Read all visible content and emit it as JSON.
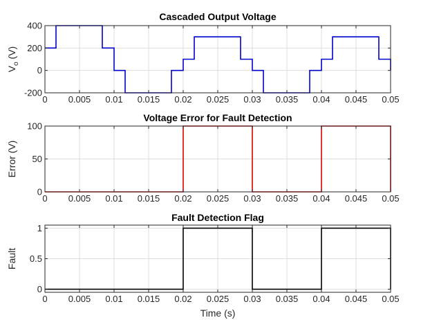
{
  "chart_data": [
    {
      "type": "line",
      "title": "Cascaded Output Voltage",
      "ylabel": "V_o (V)",
      "ylabel_main": "V",
      "ylabel_sub": "o",
      "ylabel_unit": " (V)",
      "xlabel": "",
      "xlim": [
        0,
        0.05
      ],
      "ylim": [
        -200,
        400
      ],
      "xticks": [
        "0",
        "0.005",
        "0.01",
        "0.015",
        "0.02",
        "0.025",
        "0.03",
        "0.035",
        "0.04",
        "0.045",
        "0.05"
      ],
      "yticks": [
        "-200",
        "0",
        "200",
        "400"
      ],
      "ytick_values": [
        -200,
        0,
        200,
        400
      ],
      "grid": true,
      "series": [
        {
          "color": "#0000cc",
          "x": [
            0,
            0.0016,
            0.0016,
            0.0083,
            0.0083,
            0.01,
            0.01,
            0.0116,
            0.0116,
            0.0183,
            0.0183,
            0.02,
            0.02,
            0.0216,
            0.0216,
            0.0283,
            0.0283,
            0.03,
            0.03,
            0.0316,
            0.0316,
            0.0383,
            0.0383,
            0.04,
            0.04,
            0.0416,
            0.0416,
            0.0483,
            0.0483,
            0.05,
            0.05
          ],
          "y": [
            200,
            200,
            400,
            400,
            200,
            200,
            0,
            0,
            -200,
            -200,
            0,
            0,
            100,
            100,
            300,
            300,
            100,
            100,
            0,
            0,
            -200,
            -200,
            0,
            0,
            100,
            100,
            300,
            300,
            100,
            100,
            0
          ]
        }
      ]
    },
    {
      "type": "line",
      "title": "Voltage Error for Fault Detection",
      "ylabel": "Error (V)",
      "xlabel": "",
      "xlim": [
        0,
        0.05
      ],
      "ylim": [
        0,
        100
      ],
      "xticks": [
        "0",
        "0.005",
        "0.01",
        "0.015",
        "0.02",
        "0.025",
        "0.03",
        "0.035",
        "0.04",
        "0.045",
        "0.05"
      ],
      "yticks": [
        "0",
        "50",
        "100"
      ],
      "ytick_values": [
        0,
        50,
        100
      ],
      "grid": true,
      "series": [
        {
          "color": "#dd0000",
          "x": [
            0,
            0.02,
            0.02,
            0.03,
            0.03,
            0.04,
            0.04,
            0.05,
            0.05
          ],
          "y": [
            0,
            0,
            100,
            100,
            0,
            0,
            100,
            100,
            0
          ]
        }
      ]
    },
    {
      "type": "line",
      "title": "Fault Detection Flag",
      "ylabel": "Fault",
      "xlabel": "Time (s)",
      "xlim": [
        0,
        0.05
      ],
      "ylim": [
        -0.05,
        1.05
      ],
      "xticks": [
        "0",
        "0.005",
        "0.01",
        "0.015",
        "0.02",
        "0.025",
        "0.03",
        "0.035",
        "0.04",
        "0.045",
        "0.05"
      ],
      "yticks": [
        "0",
        "0.5",
        "1"
      ],
      "ytick_values": [
        0,
        0.5,
        1
      ],
      "grid": true,
      "series": [
        {
          "color": "#000000",
          "x": [
            0,
            0.02,
            0.02,
            0.03,
            0.03,
            0.04,
            0.04,
            0.05,
            0.05
          ],
          "y": [
            0,
            0,
            1,
            1,
            0,
            0,
            1,
            1,
            0
          ]
        }
      ]
    }
  ]
}
